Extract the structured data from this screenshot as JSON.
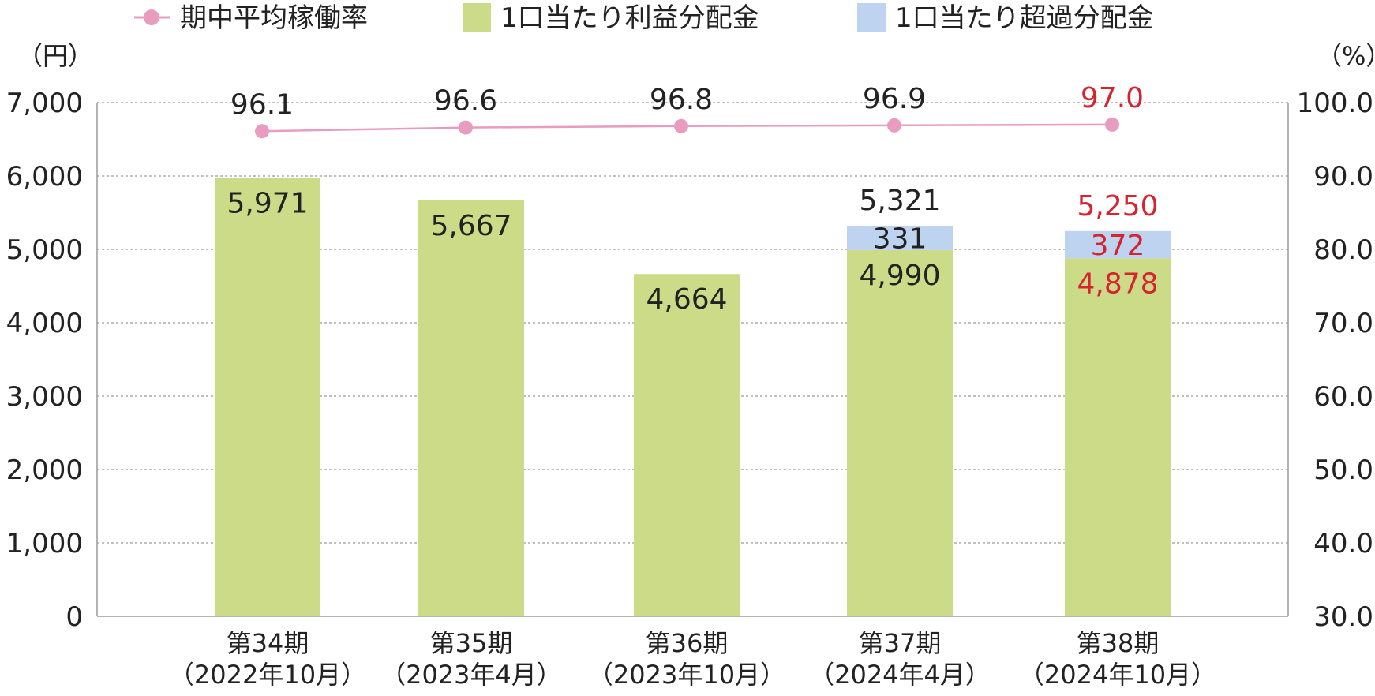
{
  "legend": [
    {
      "key": "occupancy",
      "label": "期中平均稼働率"
    },
    {
      "key": "profit",
      "label": "1口当たり利益分配金"
    },
    {
      "key": "excess",
      "label": "1口当たり超過分配金"
    }
  ],
  "left_unit": "（円）",
  "right_unit": "（%）",
  "left_ticks": [
    "0",
    "1,000",
    "2,000",
    "3,000",
    "4,000",
    "5,000",
    "6,000",
    "7,000"
  ],
  "right_ticks": [
    "30.0",
    "40.0",
    "50.0",
    "60.0",
    "70.0",
    "80.0",
    "90.0",
    "100.0"
  ],
  "colors": {
    "profit": "#cbdb87",
    "excess": "#bdd3ef",
    "line": "#e89cbf",
    "marker": "#e89cbf",
    "grid": "#9a9a9a",
    "text": "#222222",
    "highlight": "#d7232f"
  },
  "chart_data": {
    "type": "bar",
    "left_axis": {
      "ylim": [
        0,
        7000
      ],
      "unit": "円"
    },
    "right_axis": {
      "ylim": [
        30,
        100
      ],
      "unit": "%"
    },
    "grid": true,
    "legend_position": "top",
    "categories": [
      {
        "line1": "第34期",
        "line2": "（2022年10月）"
      },
      {
        "line1": "第35期",
        "line2": "（2023年4月）"
      },
      {
        "line1": "第36期",
        "line2": "（2023年10月）"
      },
      {
        "line1": "第37期",
        "line2": "（2024年4月）"
      },
      {
        "line1": "第38期",
        "line2": "（2024年10月）"
      }
    ],
    "series": [
      {
        "name": "1口当たり利益分配金",
        "key": "profit",
        "kind": "bar",
        "values": [
          5971,
          5667,
          4664,
          4990,
          4878
        ],
        "labels": [
          "5,971",
          "5,667",
          "4,664",
          "4,990",
          "4,878"
        ]
      },
      {
        "name": "1口当たり超過分配金",
        "key": "excess",
        "kind": "bar",
        "values": [
          null,
          null,
          null,
          331,
          372
        ],
        "labels": [
          "",
          "",
          "",
          "331",
          "372"
        ]
      },
      {
        "name": "期中平均稼働率",
        "key": "occupancy",
        "kind": "line",
        "axis": "right",
        "values": [
          96.1,
          96.6,
          96.8,
          96.9,
          97.0
        ],
        "labels": [
          "96.1",
          "96.6",
          "96.8",
          "96.9",
          "97.0"
        ]
      }
    ],
    "totals": {
      "values": [
        null,
        null,
        null,
        5321,
        5250
      ],
      "labels": [
        "",
        "",
        "",
        "5,321",
        "5,250"
      ]
    },
    "highlight_index": 4
  }
}
